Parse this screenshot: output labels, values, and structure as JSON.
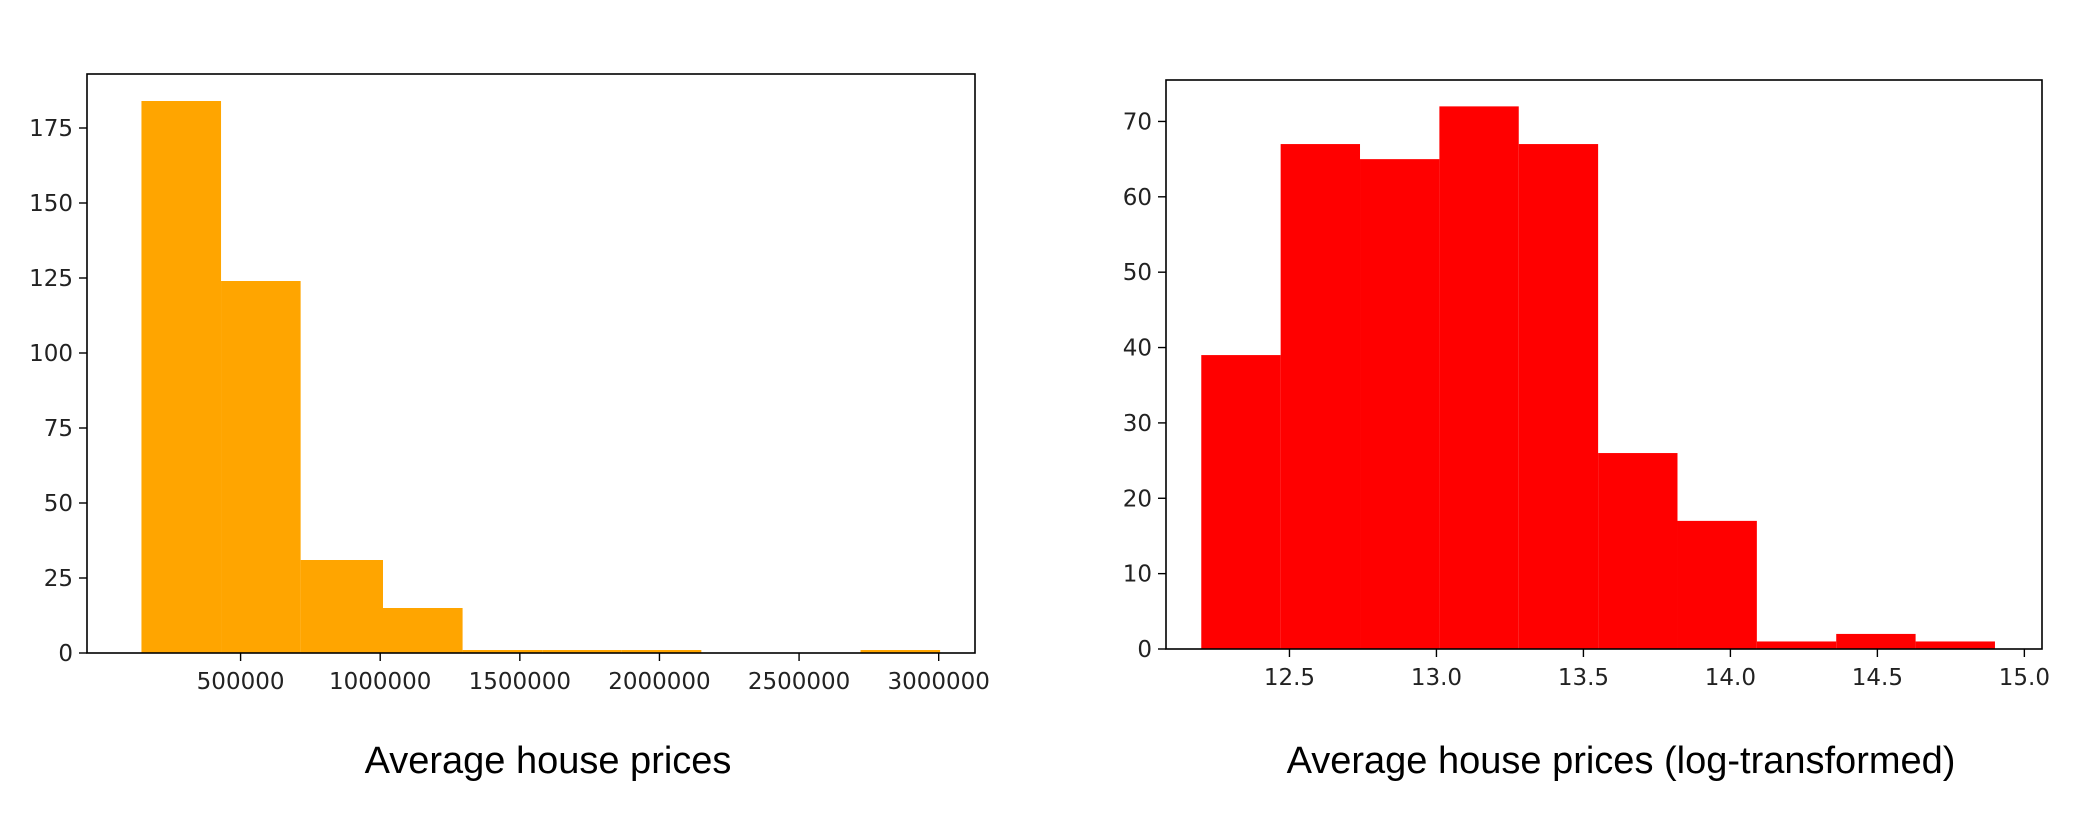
{
  "chart_data": [
    {
      "type": "bar",
      "caption": "Average house prices",
      "color": "#FFA500",
      "xlim": [
        -50000,
        3130000
      ],
      "ylim": [
        0,
        193
      ],
      "xticks": [
        500000,
        1000000,
        1500000,
        2000000,
        2500000,
        3000000
      ],
      "xtick_labels": [
        "500000",
        "1000000",
        "1500000",
        "2000000",
        "2500000",
        "3000000"
      ],
      "yticks": [
        0,
        25,
        50,
        75,
        100,
        125,
        150,
        175
      ],
      "ytick_labels": [
        "0",
        "25",
        "50",
        "75",
        "100",
        "125",
        "150",
        "175"
      ],
      "bin_edges": [
        145000,
        430000,
        715000,
        1010000,
        1295000,
        1580000,
        1865000,
        2150000,
        2435000,
        2720000,
        3005000
      ],
      "values": [
        184,
        124,
        31,
        15,
        1,
        1,
        1,
        0,
        0,
        1
      ]
    },
    {
      "type": "bar",
      "caption": "Average house prices (log-transformed)",
      "color": "#FF0000",
      "xlim": [
        12.08,
        15.06
      ],
      "ylim": [
        0,
        75.5
      ],
      "xticks": [
        12.5,
        13.0,
        13.5,
        14.0,
        14.5,
        15.0
      ],
      "xtick_labels": [
        "12.5",
        "13.0",
        "13.5",
        "14.0",
        "14.5",
        "15.0"
      ],
      "yticks": [
        0,
        10,
        20,
        30,
        40,
        50,
        60,
        70
      ],
      "ytick_labels": [
        "0",
        "10",
        "20",
        "30",
        "40",
        "50",
        "60",
        "70"
      ],
      "bin_edges": [
        12.2,
        12.47,
        12.74,
        13.01,
        13.28,
        13.55,
        13.82,
        14.09,
        14.36,
        14.63,
        14.9
      ],
      "values": [
        39,
        67,
        65,
        72,
        67,
        26,
        17,
        1,
        2,
        1
      ]
    }
  ]
}
